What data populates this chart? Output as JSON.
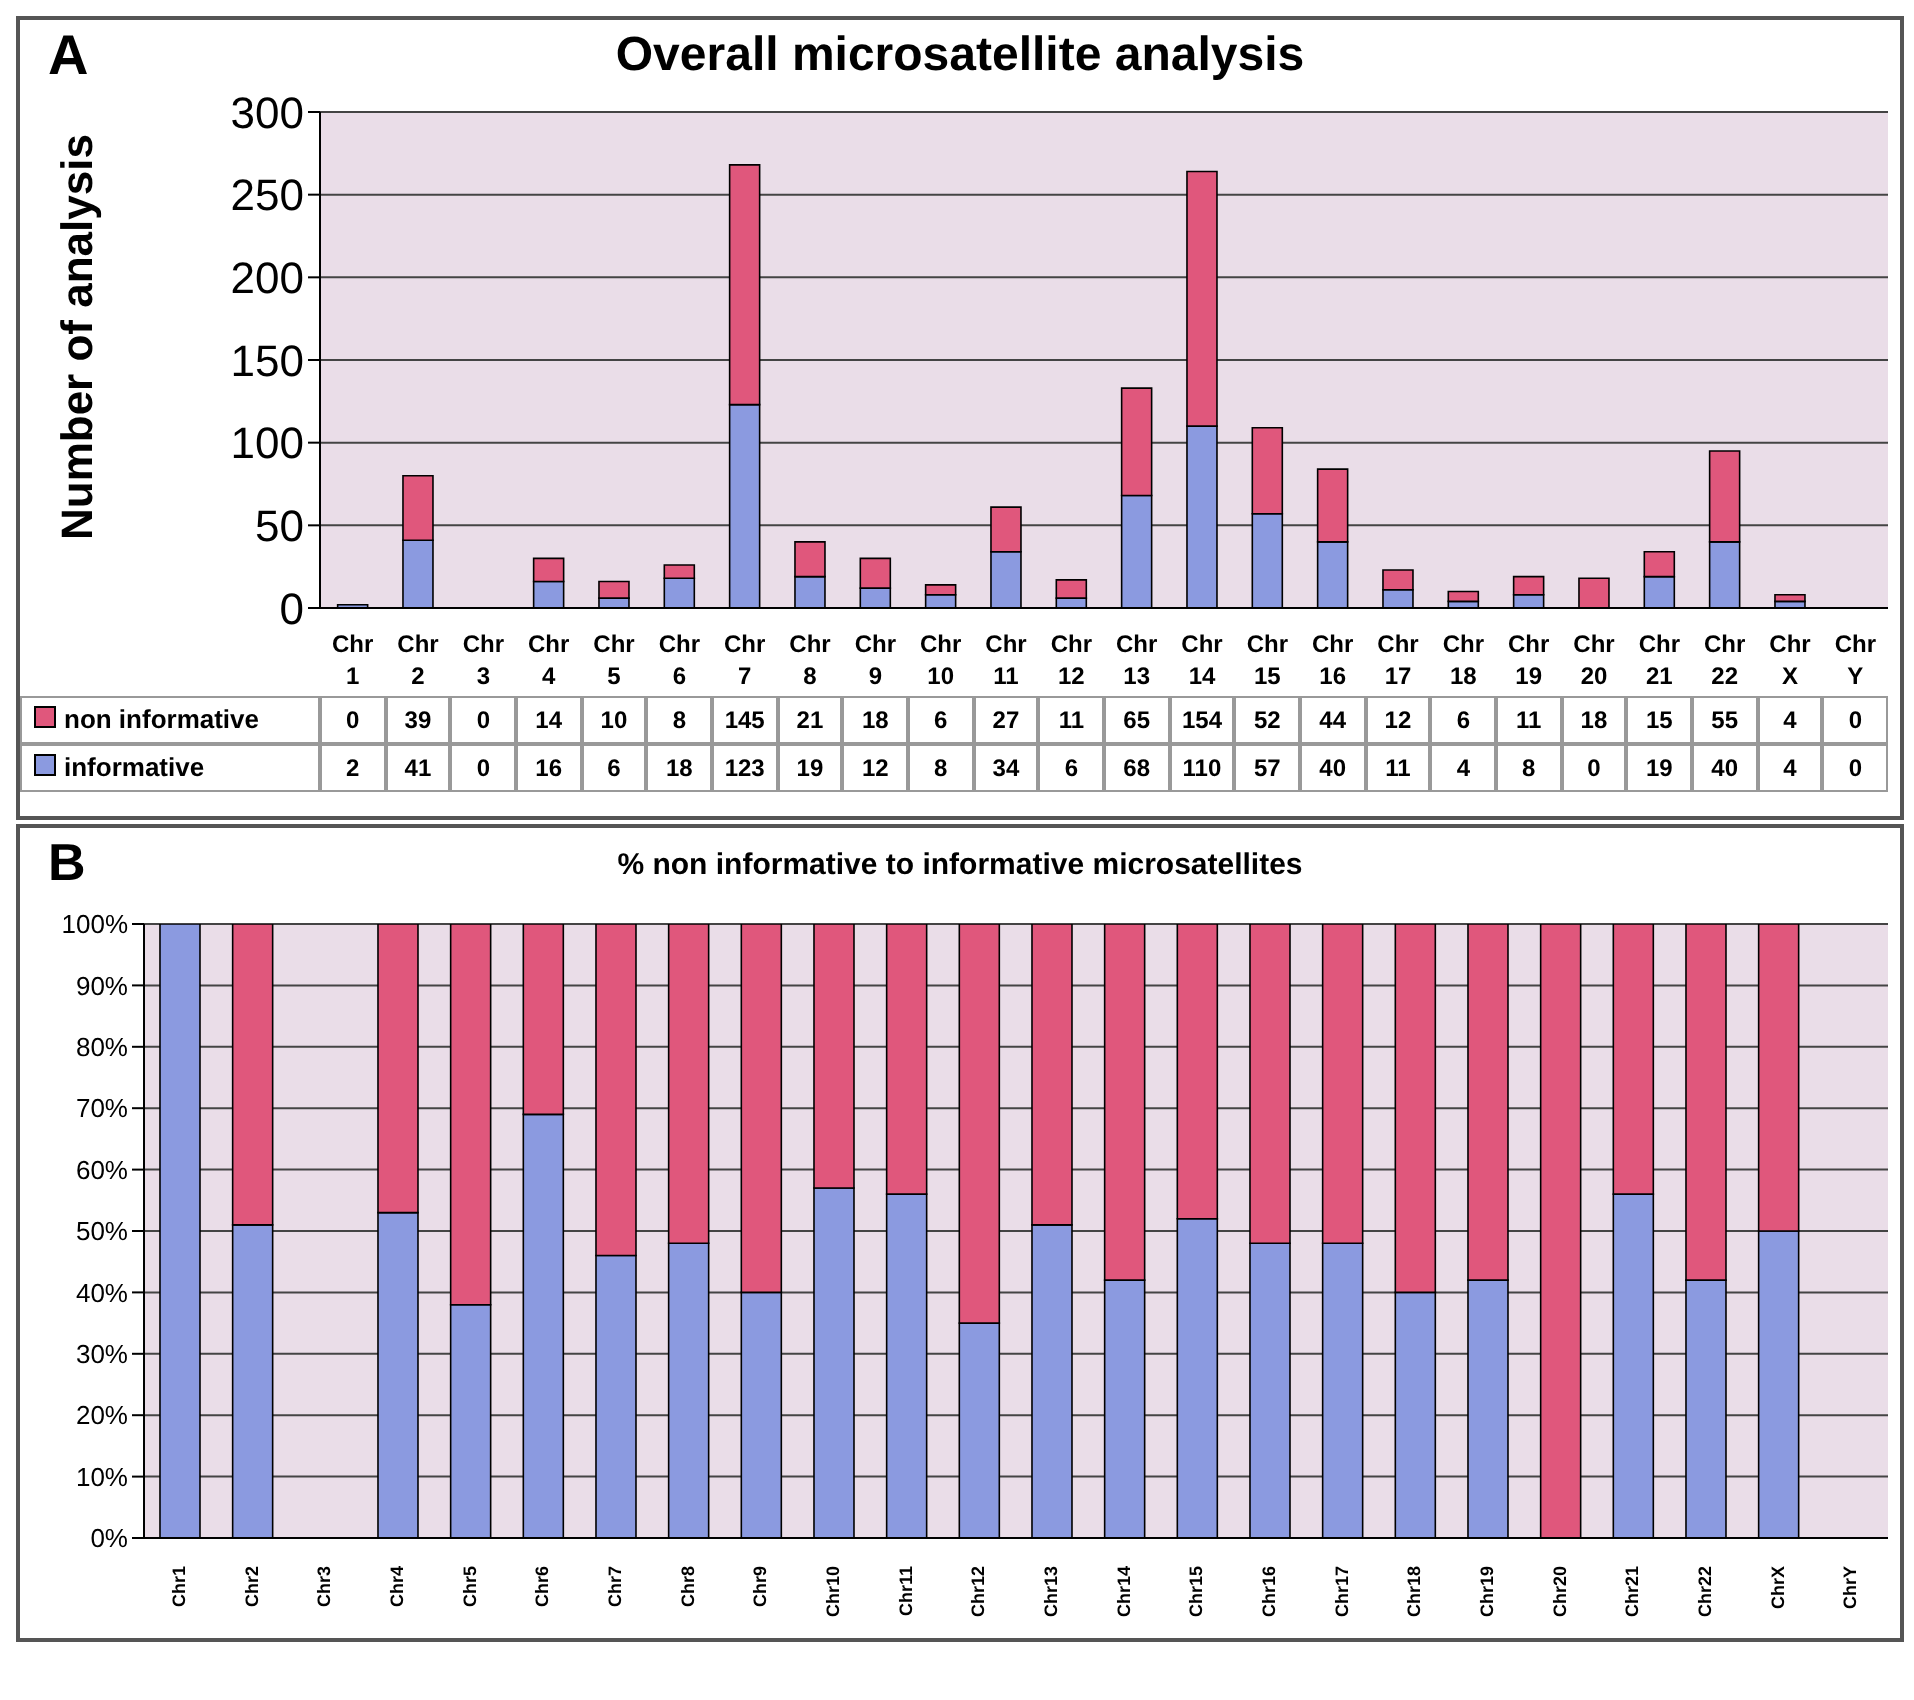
{
  "chart_data": [
    {
      "type": "bar",
      "title": "Overall microsatellite analysis",
      "annotations": [
        "A"
      ],
      "ylabel": "Number of analysis",
      "stacked": true,
      "categories": [
        "Chr 1",
        "Chr 2",
        "Chr 3",
        "Chr 4",
        "Chr 5",
        "Chr 6",
        "Chr 7",
        "Chr 8",
        "Chr 9",
        "Chr 10",
        "Chr 11",
        "Chr 12",
        "Chr 13",
        "Chr 14",
        "Chr 15",
        "Chr 16",
        "Chr 17",
        "Chr 18",
        "Chr 19",
        "Chr 20",
        "Chr 21",
        "Chr 22",
        "Chr X",
        "Chr Y"
      ],
      "series": [
        {
          "name": "informative",
          "color": "#8b9ae0",
          "values": [
            2,
            41,
            0,
            16,
            6,
            18,
            123,
            19,
            12,
            8,
            34,
            6,
            68,
            110,
            57,
            40,
            11,
            4,
            8,
            0,
            19,
            40,
            4,
            0
          ]
        },
        {
          "name": "non informative",
          "color": "#e0577c",
          "values": [
            0,
            39,
            0,
            14,
            10,
            8,
            145,
            21,
            18,
            6,
            27,
            11,
            65,
            154,
            52,
            44,
            12,
            6,
            11,
            18,
            15,
            55,
            4,
            0
          ]
        }
      ],
      "ylim": [
        0,
        300
      ],
      "yticks": [
        0,
        50,
        100,
        150,
        200,
        250,
        300
      ],
      "grid": "y",
      "data_labels": true,
      "legend": "bottom"
    },
    {
      "type": "bar",
      "title": "% non informative to informative microsatellites",
      "annotations": [
        "B"
      ],
      "stacked": true,
      "categories": [
        "Chr1",
        "Chr2",
        "Chr3",
        "Chr4",
        "Chr5",
        "Chr6",
        "Chr7",
        "Chr8",
        "Chr9",
        "Chr10",
        "Chr11",
        "Chr12",
        "Chr13",
        "Chr14",
        "Chr15",
        "Chr16",
        "Chr17",
        "Chr18",
        "Chr19",
        "Chr20",
        "Chr21",
        "Chr22",
        "ChrX",
        "ChrY"
      ],
      "series": [
        {
          "color": "#8b9ae0",
          "values": [
            100,
            51,
            null,
            53,
            38,
            69,
            46,
            48,
            40,
            57,
            56,
            35,
            51,
            42,
            52,
            48,
            48,
            40,
            42,
            0,
            56,
            42,
            50,
            null
          ]
        },
        {
          "color": "#e0577c",
          "values": [
            0,
            49,
            null,
            47,
            62,
            31,
            54,
            52,
            60,
            43,
            44,
            65,
            49,
            58,
            48,
            52,
            52,
            60,
            58,
            100,
            44,
            58,
            50,
            null
          ]
        }
      ],
      "ylim": [
        0,
        100
      ],
      "yticks": [
        {
          "value": 0,
          "label": "0%"
        },
        {
          "value": 10,
          "label": "10%"
        },
        {
          "value": 20,
          "label": "20%"
        },
        {
          "value": 30,
          "label": "30%"
        },
        {
          "value": 40,
          "label": "40%"
        },
        {
          "value": 50,
          "label": "50%"
        },
        {
          "value": 60,
          "label": "60%"
        },
        {
          "value": 70,
          "label": "70%"
        },
        {
          "value": 80,
          "label": "80%"
        },
        {
          "value": 90,
          "label": "90%"
        },
        {
          "value": 100,
          "label": "100%"
        }
      ],
      "grid": "y"
    }
  ]
}
